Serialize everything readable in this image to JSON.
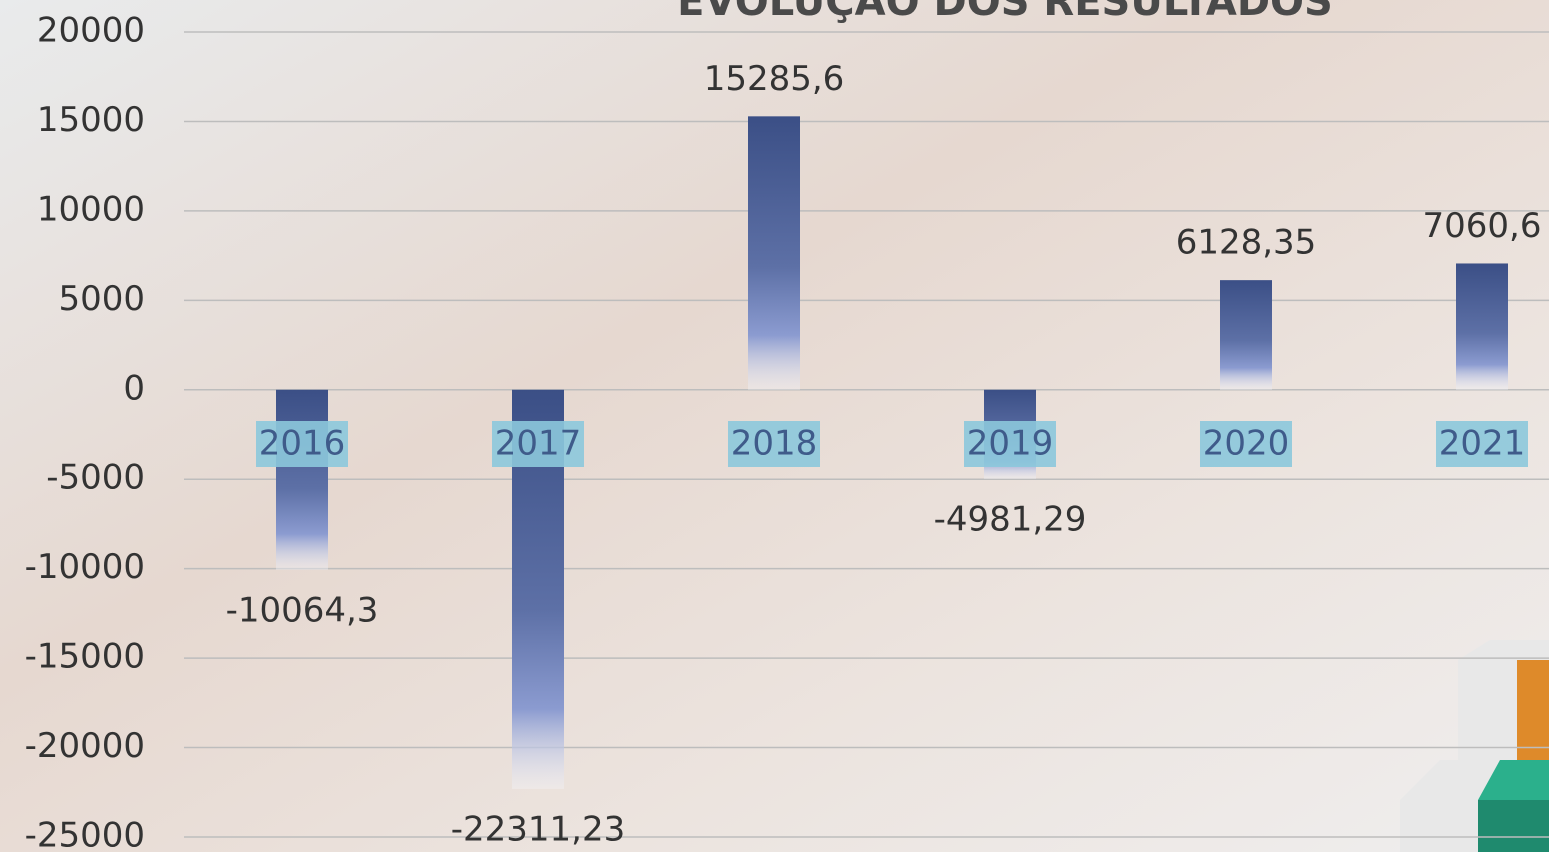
{
  "chart_data": {
    "type": "bar",
    "title": "EVOLUÇÃO DOS RESULTADOS",
    "categories": [
      "2016",
      "2017",
      "2018",
      "2019",
      "2020",
      "2021"
    ],
    "values": [
      -10064.3,
      -22311.23,
      15285.6,
      -4981.29,
      6128.35,
      7060.6
    ],
    "value_labels": [
      "-10064,3",
      "-22311,23",
      "15285,6",
      "-4981,29",
      "6128,35",
      "7060,6"
    ],
    "color": "#3b4f86",
    "ylim": [
      -25000,
      20000
    ],
    "yticks": [
      20000,
      15000,
      10000,
      5000,
      0,
      -5000,
      -10000,
      -15000,
      -20000,
      -25000
    ],
    "grid": true
  }
}
